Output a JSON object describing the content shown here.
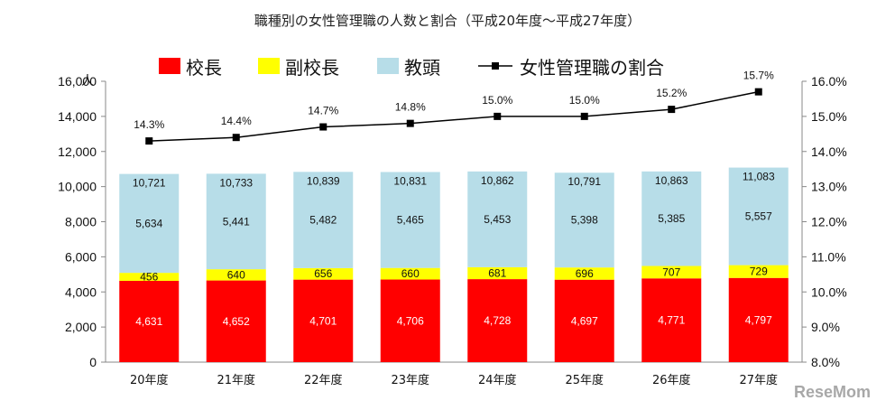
{
  "chart_data": {
    "type": "bar",
    "title": "職種別の女性管理職の人数と割合（平成20年度～平成27年度）",
    "categories": [
      "20年度",
      "21年度",
      "22年度",
      "23年度",
      "24年度",
      "25年度",
      "26年度",
      "27年度"
    ],
    "series": [
      {
        "name": "校長",
        "values": [
          4631,
          4652,
          4701,
          4706,
          4728,
          4697,
          4771,
          4797
        ],
        "color": "#ff0000"
      },
      {
        "name": "副校長",
        "values": [
          456,
          640,
          656,
          660,
          681,
          696,
          707,
          729
        ],
        "color": "#ffff00"
      },
      {
        "name": "教頭",
        "values": [
          5634,
          5441,
          5482,
          5465,
          5453,
          5398,
          5385,
          5557
        ],
        "color": "#b7dde8"
      }
    ],
    "totals": [
      10721,
      10733,
      10839,
      10831,
      10862,
      10791,
      10863,
      11083
    ],
    "ratio": {
      "name": "女性管理職の割合",
      "values": [
        14.3,
        14.4,
        14.7,
        14.8,
        15.0,
        15.0,
        15.2,
        15.7
      ],
      "labels": [
        "14.3%",
        "14.4%",
        "14.7%",
        "14.8%",
        "15.0%",
        "15.0%",
        "15.2%",
        "15.7%"
      ],
      "color": "#000000"
    },
    "y_left": {
      "min": 0,
      "max": 16000,
      "ticks": [
        "0",
        "2,000",
        "4,000",
        "6,000",
        "8,000",
        "10,000",
        "12,000",
        "14,000",
        "16,000"
      ],
      "unit": "人"
    },
    "y_right": {
      "min": 8.0,
      "max": 16.0,
      "ticks": [
        "8.0%",
        "9.0%",
        "10.0%",
        "11.0%",
        "12.0%",
        "13.0%",
        "14.0%",
        "15.0%",
        "16.0%"
      ]
    },
    "grid": false,
    "legend_position": "top"
  },
  "watermark": "ReseMom"
}
